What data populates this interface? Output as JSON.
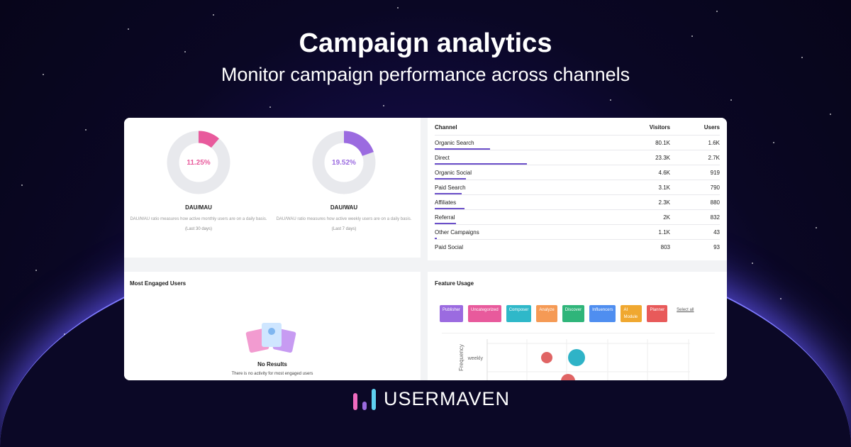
{
  "hero": {
    "title": "Campaign analytics",
    "subtitle": "Monitor campaign performance across channels"
  },
  "ratios": [
    {
      "value": "11.25%",
      "percent": 11.25,
      "title": "DAU/MAU",
      "description": "DAU/MAU ratio measures how active monthly users are on a daily basis.",
      "range": "(Last 30 days)",
      "color": "#e85a9c"
    },
    {
      "value": "19.52%",
      "percent": 19.52,
      "title": "DAU/WAU",
      "description": "DAU/WAU ratio measures how active weekly users are on a daily basis.",
      "range": "(Last 7 days)",
      "color": "#9b6be0"
    }
  ],
  "channels": {
    "headers": [
      "Channel",
      "Visitors",
      "Users"
    ],
    "rows": [
      {
        "name": "Organic Search",
        "visitors": "80.1K",
        "users": "1.6K"
      },
      {
        "name": "Direct",
        "visitors": "23.3K",
        "users": "2.7K"
      },
      {
        "name": "Organic Social",
        "visitors": "4.6K",
        "users": "919"
      },
      {
        "name": "Paid Search",
        "visitors": "3.1K",
        "users": "790"
      },
      {
        "name": "Affiliates",
        "visitors": "2.3K",
        "users": "880"
      },
      {
        "name": "Referral",
        "visitors": "2K",
        "users": "832"
      },
      {
        "name": "Other Campaigns",
        "visitors": "1.1K",
        "users": "43"
      },
      {
        "name": "Paid Social",
        "visitors": "803",
        "users": "93"
      }
    ]
  },
  "engaged": {
    "title": "Most Engaged Users",
    "empty_title": "No Results",
    "empty_text": "There is no activity for most engaged users"
  },
  "features": {
    "title": "Feature Usage",
    "select_all": "Select all",
    "y_tick": "weekly",
    "y_label": "Frequency",
    "chips": [
      {
        "label": "Publisher",
        "color": "#9b6be0"
      },
      {
        "label": "Uncategorized",
        "color": "#e85a9c"
      },
      {
        "label": "Composer",
        "color": "#2fb8c9"
      },
      {
        "label": "Analyze",
        "color": "#f59a55"
      },
      {
        "label": "Discover",
        "color": "#2fb57a"
      },
      {
        "label": "Influencers",
        "color": "#4f8ef0"
      },
      {
        "label": "AI Module",
        "color": "#f0a830"
      },
      {
        "label": "Planner",
        "color": "#e85a5a"
      }
    ]
  },
  "brand": {
    "name": "USERMAVEN"
  }
}
